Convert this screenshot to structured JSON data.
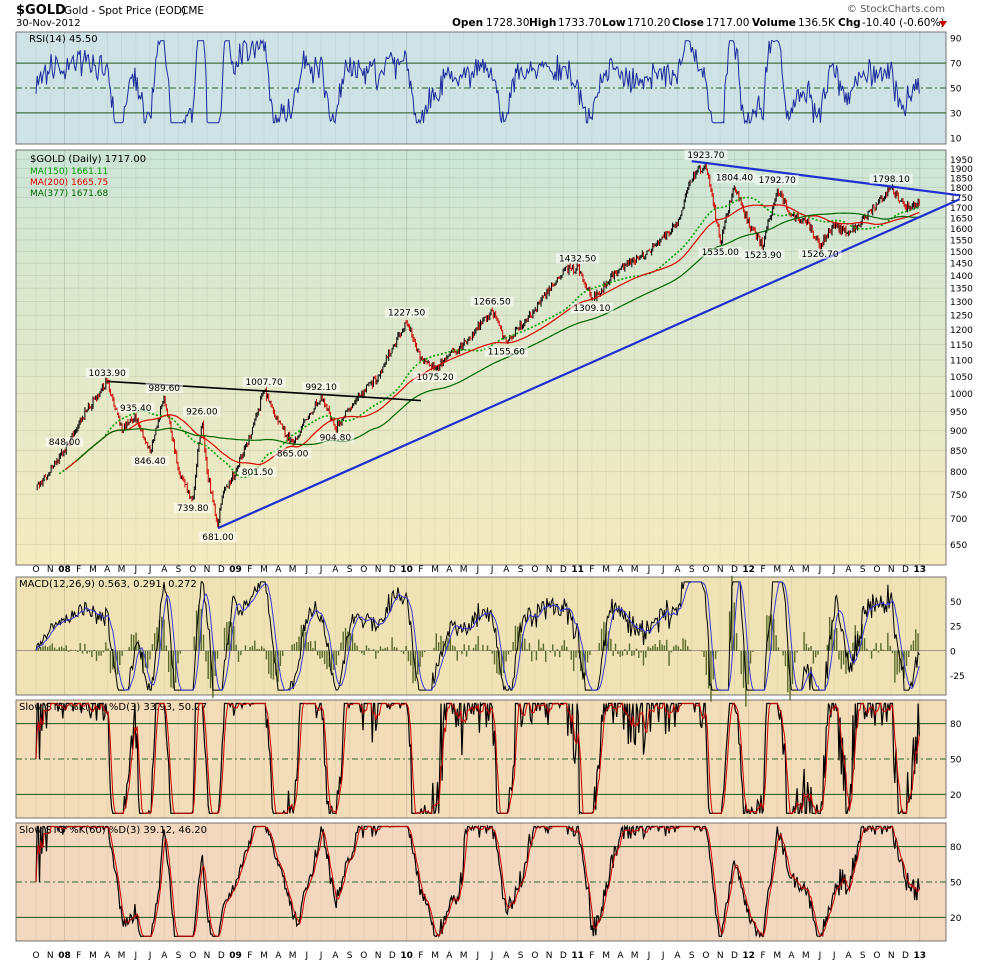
{
  "header": {
    "symbol": "$GOLD",
    "name": "Gold - Spot Price (EOD)",
    "exchange": "CME",
    "date": "30-Nov-2012",
    "brand": "© StockCharts.com",
    "open_label": "Open",
    "open": "1728.30",
    "high_label": "High",
    "high": "1733.70",
    "low_label": "Low",
    "low": "1710.20",
    "close_label": "Close",
    "close": "1717.00",
    "volume_label": "Volume",
    "volume": "136.5K",
    "chg_label": "Chg",
    "chg": "-10.40 (-0.60%)"
  },
  "colors": {
    "price": "#000000",
    "down": "#cc0000",
    "ma150": "#00a000",
    "ma200": "#dd0000",
    "ma377": "#006600",
    "trend": "#1f2fd0",
    "rsi": "#1a2a9a",
    "macd_hist": "#5a6a2a",
    "rsi_bg": "#cfe3e6",
    "price_bg_top": "#cfe6d2",
    "price_bg_bottom": "#f4ebc2",
    "macd_bg": "#efe3b6",
    "sto1_bg": "#f3dcb8",
    "sto2_bg": "#f3d8bf"
  },
  "chart_data": [
    {
      "type": "line",
      "panel": "rsi",
      "title": "RSI(14) 45.50",
      "y_ticks": [
        10,
        30,
        50,
        70,
        90
      ],
      "ylim": [
        5,
        95
      ],
      "reference_lines": [
        30,
        50,
        70
      ],
      "last_value": 45.5
    },
    {
      "type": "line",
      "panel": "price",
      "title": "$GOLD (Daily) 1717.00",
      "legend": [
        {
          "name": "MA(150) 1661.11",
          "color": "#00a000",
          "style": "dotted"
        },
        {
          "name": "MA(200) 1665.75",
          "color": "#dd0000",
          "style": "solid"
        },
        {
          "name": "MA(377) 1671.68",
          "color": "#006600",
          "style": "solid"
        }
      ],
      "y_ticks": [
        650,
        700,
        750,
        800,
        850,
        900,
        950,
        1000,
        1050,
        1100,
        1150,
        1200,
        1250,
        1300,
        1350,
        1400,
        1450,
        1500,
        1550,
        1600,
        1650,
        1700,
        1750,
        1800,
        1850,
        1900,
        1950
      ],
      "ylim": [
        620,
        1980
      ],
      "x_ticks": [
        "O",
        "N",
        "08",
        "F",
        "M",
        "A",
        "M",
        "J",
        "J",
        "A",
        "S",
        "O",
        "N",
        "D",
        "09",
        "F",
        "M",
        "A",
        "M",
        "J",
        "J",
        "A",
        "S",
        "O",
        "N",
        "D",
        "10",
        "F",
        "M",
        "A",
        "M",
        "J",
        "J",
        "A",
        "S",
        "O",
        "N",
        "D",
        "11",
        "F",
        "M",
        "A",
        "M",
        "J",
        "J",
        "A",
        "S",
        "O",
        "N",
        "D",
        "12",
        "F",
        "M",
        "A",
        "M",
        "J",
        "J",
        "A",
        "S",
        "O",
        "N",
        "D",
        "13"
      ],
      "x_start": "2007-10",
      "x_end": "2013-01",
      "price_path": [
        [
          "2007-10",
          760
        ],
        [
          "2007-11",
          800
        ],
        [
          "2007-12",
          848
        ],
        [
          "2008-01",
          920
        ],
        [
          "2008-03",
          1033.9
        ],
        [
          "2008-04",
          900
        ],
        [
          "2008-05",
          935.4
        ],
        [
          "2008-06",
          846.4
        ],
        [
          "2008-07",
          989.6
        ],
        [
          "2008-08",
          800
        ],
        [
          "2008-09",
          739.8
        ],
        [
          "2008-09-20",
          926
        ],
        [
          "2008-10",
          800
        ],
        [
          "2008-10-24",
          681
        ],
        [
          "2008-11",
          740
        ],
        [
          "2008-12",
          801.5
        ],
        [
          "2009-01",
          880
        ],
        [
          "2009-02",
          1007.7
        ],
        [
          "2009-03",
          920
        ],
        [
          "2009-04",
          865
        ],
        [
          "2009-06",
          992.1
        ],
        [
          "2009-07",
          904.8
        ],
        [
          "2009-08",
          960
        ],
        [
          "2009-10",
          1050
        ],
        [
          "2009-12",
          1227.5
        ],
        [
          "2010-01",
          1100
        ],
        [
          "2010-02",
          1075.2
        ],
        [
          "2010-04",
          1150
        ],
        [
          "2010-06",
          1266.5
        ],
        [
          "2010-07",
          1155.6
        ],
        [
          "2010-09",
          1270
        ],
        [
          "2010-11",
          1420
        ],
        [
          "2010-12",
          1432.5
        ],
        [
          "2011-01",
          1309.1
        ],
        [
          "2011-03",
          1430
        ],
        [
          "2011-05",
          1500
        ],
        [
          "2011-07",
          1620
        ],
        [
          "2011-08",
          1850
        ],
        [
          "2011-09",
          1923.7
        ],
        [
          "2011-10",
          1535
        ],
        [
          "2011-11",
          1804.4
        ],
        [
          "2011-12",
          1620
        ],
        [
          "2012-01",
          1523.9
        ],
        [
          "2012-02",
          1792.7
        ],
        [
          "2012-03",
          1660
        ],
        [
          "2012-04",
          1640
        ],
        [
          "2012-05",
          1526.7
        ],
        [
          "2012-06",
          1610
        ],
        [
          "2012-07",
          1580
        ],
        [
          "2012-08",
          1640
        ],
        [
          "2012-10",
          1798.1
        ],
        [
          "2012-11",
          1700
        ],
        [
          "2012-11-30",
          1717
        ]
      ],
      "annotations": [
        {
          "x": "2008-03",
          "y": 1033.9,
          "text": "1033.90",
          "pos": "above"
        },
        {
          "x": "2007-12",
          "y": 848,
          "text": "848.00",
          "pos": "above"
        },
        {
          "x": "2008-05",
          "y": 935.4,
          "text": "935.40",
          "pos": "above"
        },
        {
          "x": "2008-07",
          "y": 989.6,
          "text": "989.60",
          "pos": "above"
        },
        {
          "x": "2008-06",
          "y": 846.4,
          "text": "846.40",
          "pos": "below"
        },
        {
          "x": "2008-09-20",
          "y": 926,
          "text": "926.00",
          "pos": "above"
        },
        {
          "x": "2008-09",
          "y": 739.8,
          "text": "739.80",
          "pos": "below"
        },
        {
          "x": "2008-10-24",
          "y": 681,
          "text": "681.00",
          "pos": "below"
        },
        {
          "x": "2008-12",
          "y": 801.5,
          "text": "801.50",
          "pos": "right"
        },
        {
          "x": "2009-02",
          "y": 1007.7,
          "text": "1007.70",
          "pos": "above"
        },
        {
          "x": "2009-04",
          "y": 865,
          "text": "865.00",
          "pos": "below"
        },
        {
          "x": "2009-06",
          "y": 992.1,
          "text": "992.10",
          "pos": "above"
        },
        {
          "x": "2009-07",
          "y": 904.8,
          "text": "904.80",
          "pos": "below"
        },
        {
          "x": "2009-12",
          "y": 1227.5,
          "text": "1227.50",
          "pos": "above"
        },
        {
          "x": "2010-02",
          "y": 1075.2,
          "text": "1075.20",
          "pos": "below"
        },
        {
          "x": "2010-06",
          "y": 1266.5,
          "text": "1266.50",
          "pos": "above"
        },
        {
          "x": "2010-07",
          "y": 1155.6,
          "text": "1155.60",
          "pos": "below"
        },
        {
          "x": "2010-12",
          "y": 1432.5,
          "text": "1432.50",
          "pos": "above"
        },
        {
          "x": "2011-01",
          "y": 1309.1,
          "text": "1309.10",
          "pos": "below"
        },
        {
          "x": "2011-09",
          "y": 1923.7,
          "text": "1923.70",
          "pos": "above"
        },
        {
          "x": "2011-10",
          "y": 1535,
          "text": "1535.00",
          "pos": "below"
        },
        {
          "x": "2011-11",
          "y": 1804.4,
          "text": "1804.40",
          "pos": "above"
        },
        {
          "x": "2012-01",
          "y": 1523.9,
          "text": "1523.90",
          "pos": "below"
        },
        {
          "x": "2012-02",
          "y": 1792.7,
          "text": "1792.70",
          "pos": "above"
        },
        {
          "x": "2012-05",
          "y": 1526.7,
          "text": "1526.70",
          "pos": "below"
        },
        {
          "x": "2012-10",
          "y": 1798.1,
          "text": "1798.10",
          "pos": "above"
        }
      ],
      "trendlines": [
        {
          "color": "#000000",
          "from": [
            "2008-03",
            1035
          ],
          "to": [
            "2010-01",
            980
          ]
        },
        {
          "color": "#1f2fd0",
          "from": [
            "2008-10-24",
            681
          ],
          "to": [
            "2013-02-25",
            1740
          ]
        },
        {
          "color": "#1f2fd0",
          "from": [
            "2011-08",
            1940
          ],
          "to": [
            "2013-02-25",
            1760
          ]
        }
      ]
    },
    {
      "type": "line",
      "panel": "macd",
      "title": "MACD(12,26,9) 0.563, 0.291, 0.272",
      "y_ticks": [
        -25,
        0,
        25,
        50
      ],
      "ylim": [
        -45,
        75
      ]
    },
    {
      "type": "line",
      "panel": "sto14",
      "title": "Slow STO %K(14) %D(3) 33.93, 50.27",
      "y_ticks": [
        20,
        50,
        80
      ],
      "ylim": [
        0,
        100
      ],
      "reference_lines": [
        20,
        50,
        80
      ]
    },
    {
      "type": "line",
      "panel": "sto60",
      "title": "Slow STO %K(60) %D(3) 39.12, 46.20",
      "y_ticks": [
        20,
        50,
        80
      ],
      "ylim": [
        0,
        100
      ],
      "reference_lines": [
        20,
        50,
        80
      ]
    }
  ]
}
